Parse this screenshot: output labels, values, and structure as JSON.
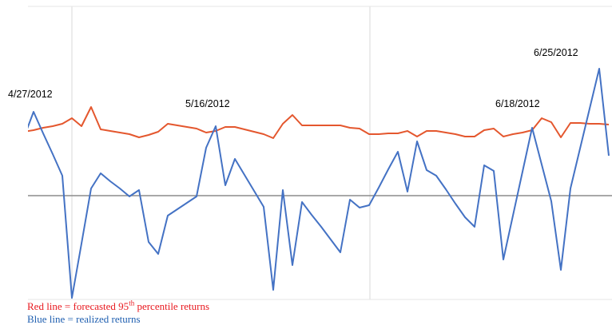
{
  "chart_data": {
    "type": "line",
    "annotations": [
      "4/27/2012",
      "5/16/2012",
      "6/18/2012",
      "6/25/2012"
    ],
    "categories": [
      null,
      null,
      null,
      null,
      null,
      null,
      null,
      null,
      null,
      null,
      null,
      null,
      null,
      null,
      null,
      null,
      null,
      null,
      null,
      null,
      null,
      null,
      null,
      null,
      null,
      null,
      null,
      null,
      null,
      null,
      null,
      null,
      null,
      null,
      null,
      null,
      null,
      null,
      null,
      null,
      null,
      null,
      null,
      null,
      null,
      null,
      null,
      null,
      null,
      null,
      null,
      null,
      null,
      null,
      null,
      null,
      null,
      null,
      null,
      null,
      null,
      null
    ],
    "ylim": [
      -1.3,
      2.45
    ],
    "series": [
      {
        "name": "Red line = forecasted 95th percentile returns",
        "color": "#e4572e",
        "label_color": "#e8191f",
        "values": [
          0.8,
          0.82,
          0.85,
          0.87,
          0.9,
          0.97,
          0.87,
          1.11,
          0.83,
          0.81,
          0.79,
          0.77,
          0.73,
          0.76,
          0.8,
          0.9,
          0.88,
          0.86,
          0.84,
          0.79,
          0.81,
          0.86,
          0.86,
          0.83,
          0.8,
          0.77,
          0.72,
          0.9,
          1.01,
          0.88,
          0.88,
          0.88,
          0.88,
          0.88,
          0.85,
          0.84,
          0.77,
          0.77,
          0.78,
          0.78,
          0.81,
          0.74,
          0.81,
          0.81,
          0.79,
          0.77,
          0.74,
          0.74,
          0.82,
          0.84,
          0.74,
          0.77,
          0.79,
          0.82,
          0.97,
          0.92,
          0.73,
          0.91,
          0.91,
          0.9,
          0.9,
          0.89
        ]
      },
      {
        "name": "Blue line = realized returns",
        "color": "#4472c4",
        "label_color": "#1f5fb0",
        "values": [
          0.73,
          1.05,
          0.78,
          0.52,
          0.25,
          -1.28,
          -0.6,
          0.09,
          0.28,
          0.18,
          0.09,
          -0.01,
          0.07,
          -0.58,
          -0.73,
          -0.25,
          -0.17,
          -0.09,
          -0.01,
          0.6,
          0.87,
          0.13,
          0.46,
          0.26,
          0.06,
          -0.14,
          -1.18,
          0.07,
          -0.87,
          -0.08,
          -0.24,
          -0.39,
          -0.55,
          -0.71,
          -0.05,
          -0.15,
          -0.12,
          0.1,
          0.33,
          0.55,
          0.05,
          0.68,
          0.32,
          0.25,
          0.08,
          -0.1,
          -0.27,
          -0.39,
          0.38,
          0.31,
          -0.8,
          -0.25,
          0.3,
          0.85,
          0.39,
          -0.07,
          -0.93,
          0.09,
          0.59,
          1.09,
          1.59,
          0.5
        ]
      }
    ]
  }
}
